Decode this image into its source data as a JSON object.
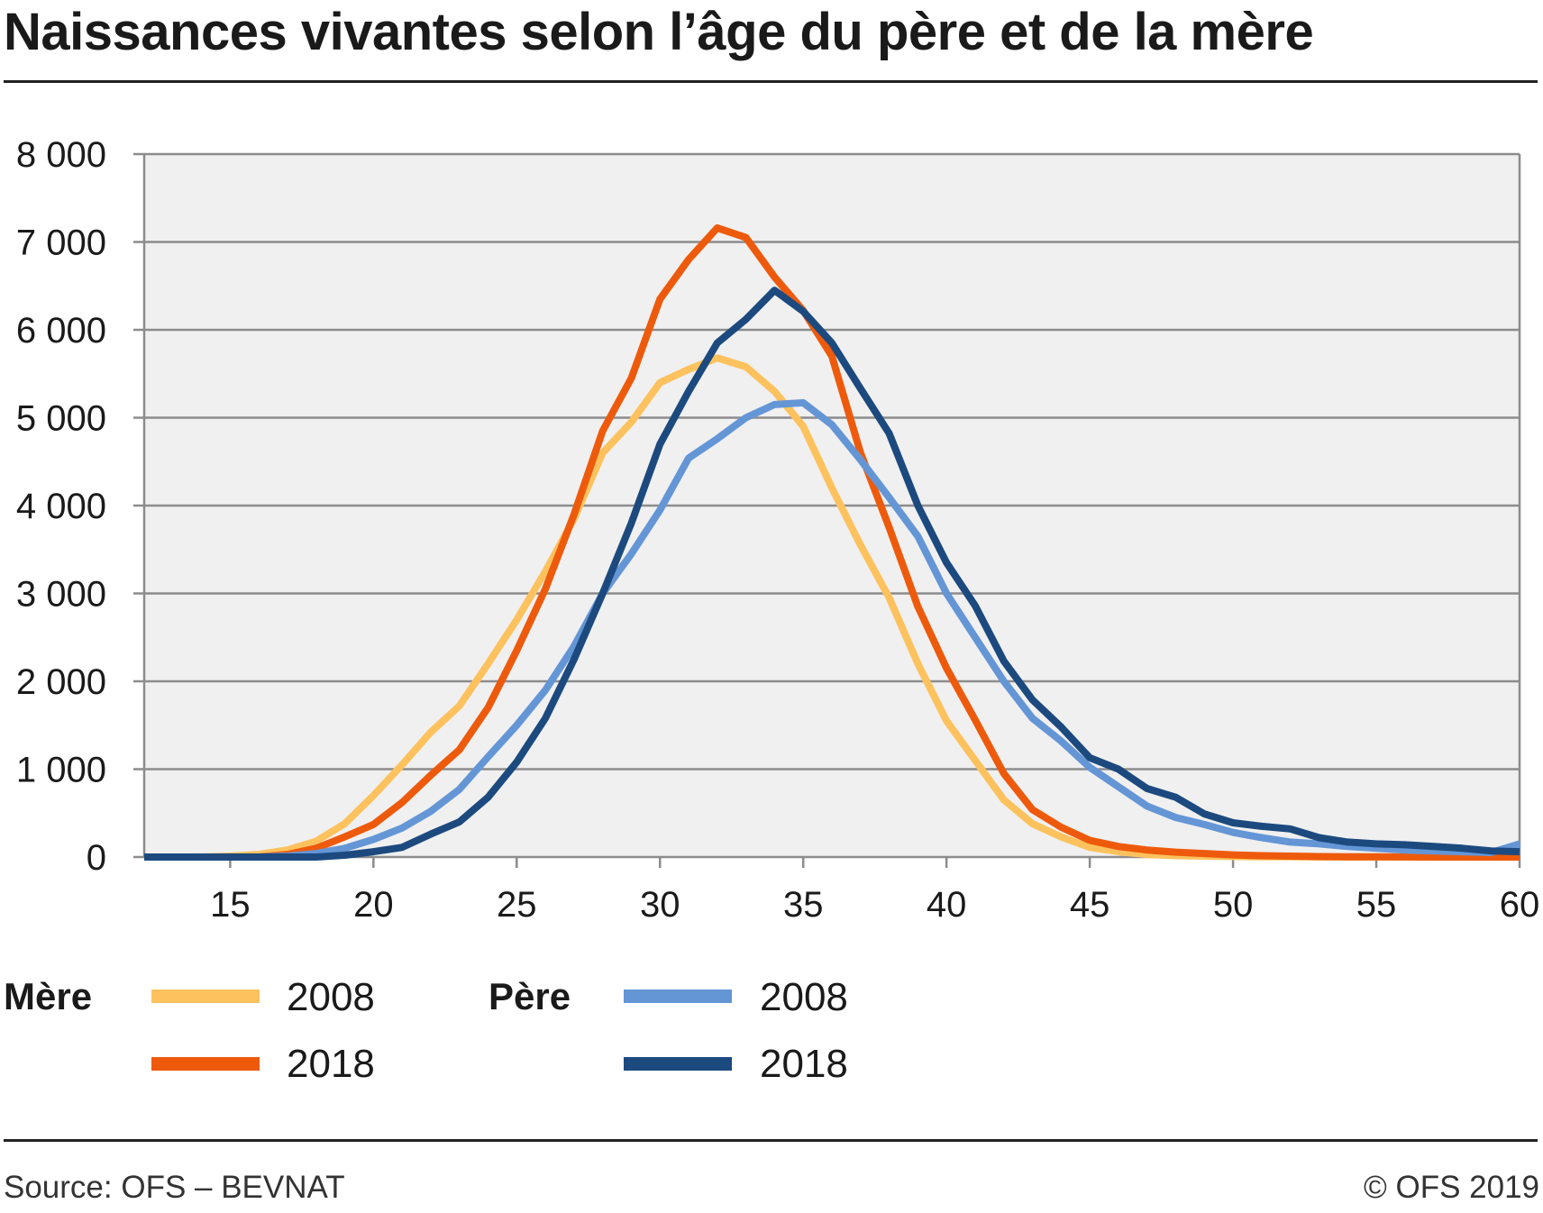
{
  "title": "Naissances vivantes selon l’âge du père et de la mère",
  "colors": {
    "mere_2008": "#fdc25e",
    "mere_2018": "#ee5a0c",
    "pere_2008": "#6496d6",
    "pere_2018": "#1c4a7f",
    "plot_bg": "#f0f0f0",
    "grid": "#8c8c8c"
  },
  "legend": {
    "mere_label": "Mère",
    "pere_label": "Père",
    "entries": [
      {
        "group": "Mère",
        "year": "2008"
      },
      {
        "group": "Mère",
        "year": "2018"
      },
      {
        "group": "Père",
        "year": "2008"
      },
      {
        "group": "Père",
        "year": "2018"
      }
    ]
  },
  "footer": {
    "source": "Source: OFS – BEVNAT",
    "copyright": "© OFS 2019"
  },
  "chart_data": {
    "type": "line",
    "title": "Naissances vivantes selon l’âge du père et de la mère",
    "xlabel": "",
    "ylabel": "",
    "xlim": [
      12,
      60
    ],
    "ylim": [
      0,
      8000
    ],
    "x_ticks": [
      15,
      20,
      25,
      30,
      35,
      40,
      45,
      50,
      55,
      60
    ],
    "y_ticks": [
      0,
      1000,
      2000,
      3000,
      4000,
      5000,
      6000,
      7000,
      8000
    ],
    "x_tick_labels": [
      "15",
      "20",
      "25",
      "30",
      "35",
      "40",
      "45",
      "50",
      "55",
      "60"
    ],
    "y_tick_labels": [
      "0",
      "1 000",
      "2 000",
      "3 000",
      "4 000",
      "5 000",
      "6 000",
      "7 000",
      "8 000"
    ],
    "grid": true,
    "legend_position": "bottom",
    "series": [
      {
        "name": "Mère 2008",
        "color_key": "mere_2008",
        "x": [
          12,
          13,
          14,
          15,
          16,
          17,
          18,
          19,
          20,
          21,
          22,
          23,
          24,
          25,
          26,
          27,
          28,
          29,
          30,
          31,
          32,
          33,
          34,
          35,
          36,
          37,
          38,
          39,
          40,
          41,
          42,
          43,
          44,
          45,
          46,
          47,
          48,
          49,
          50,
          51,
          52,
          53,
          54,
          55,
          56,
          57,
          58,
          59,
          60
        ],
        "y": [
          0,
          0,
          0,
          10,
          30,
          80,
          180,
          380,
          700,
          1050,
          1420,
          1720,
          2200,
          2700,
          3250,
          3850,
          4600,
          4950,
          5400,
          5550,
          5680,
          5580,
          5300,
          4900,
          4200,
          3550,
          2950,
          2200,
          1550,
          1100,
          650,
          380,
          230,
          110,
          60,
          30,
          15,
          10,
          5,
          3,
          2,
          1,
          0,
          0,
          0,
          0,
          0,
          0,
          0
        ]
      },
      {
        "name": "Mère 2018",
        "color_key": "mere_2018",
        "x": [
          12,
          13,
          14,
          15,
          16,
          17,
          18,
          19,
          20,
          21,
          22,
          23,
          24,
          25,
          26,
          27,
          28,
          29,
          30,
          31,
          32,
          33,
          34,
          35,
          36,
          37,
          38,
          39,
          40,
          41,
          42,
          43,
          44,
          45,
          46,
          47,
          48,
          49,
          50,
          51,
          52,
          53,
          54,
          55,
          56,
          57,
          58,
          59,
          60
        ],
        "y": [
          0,
          0,
          0,
          0,
          0,
          30,
          100,
          230,
          370,
          620,
          930,
          1220,
          1700,
          2350,
          3050,
          3900,
          4850,
          5450,
          6350,
          6800,
          7160,
          7050,
          6600,
          6220,
          5700,
          4600,
          3750,
          2850,
          2150,
          1560,
          950,
          540,
          340,
          190,
          120,
          80,
          55,
          40,
          25,
          15,
          10,
          5,
          3,
          2,
          1,
          0,
          0,
          0,
          0
        ]
      },
      {
        "name": "Père 2008",
        "color_key": "pere_2008",
        "x": [
          12,
          13,
          14,
          15,
          16,
          17,
          18,
          19,
          20,
          21,
          22,
          23,
          24,
          25,
          26,
          27,
          28,
          29,
          30,
          31,
          32,
          33,
          34,
          35,
          36,
          37,
          38,
          39,
          40,
          41,
          42,
          43,
          44,
          45,
          46,
          47,
          48,
          49,
          50,
          51,
          52,
          53,
          54,
          55,
          56,
          57,
          58,
          59,
          60
        ],
        "y": [
          0,
          0,
          0,
          0,
          0,
          10,
          40,
          100,
          200,
          330,
          520,
          770,
          1140,
          1500,
          1900,
          2400,
          3000,
          3450,
          3950,
          4540,
          4760,
          5000,
          5150,
          5170,
          4920,
          4520,
          4090,
          3650,
          3000,
          2500,
          2000,
          1580,
          1320,
          1020,
          800,
          580,
          450,
          370,
          280,
          220,
          170,
          150,
          120,
          100,
          80,
          70,
          60,
          50,
          150
        ]
      },
      {
        "name": "Père 2018",
        "color_key": "pere_2018",
        "x": [
          12,
          13,
          14,
          15,
          16,
          17,
          18,
          19,
          20,
          21,
          22,
          23,
          24,
          25,
          26,
          27,
          28,
          29,
          30,
          31,
          32,
          33,
          34,
          35,
          36,
          37,
          38,
          39,
          40,
          41,
          42,
          43,
          44,
          45,
          46,
          47,
          48,
          49,
          50,
          51,
          52,
          53,
          54,
          55,
          56,
          57,
          58,
          59,
          60
        ],
        "y": [
          0,
          0,
          0,
          0,
          0,
          0,
          0,
          20,
          60,
          110,
          260,
          400,
          680,
          1080,
          1580,
          2250,
          3000,
          3800,
          4700,
          5300,
          5850,
          6120,
          6450,
          6210,
          5850,
          5330,
          4820,
          4000,
          3350,
          2860,
          2230,
          1790,
          1480,
          1130,
          1000,
          780,
          680,
          490,
          390,
          350,
          320,
          220,
          170,
          150,
          140,
          120,
          100,
          70,
          60
        ]
      }
    ]
  }
}
